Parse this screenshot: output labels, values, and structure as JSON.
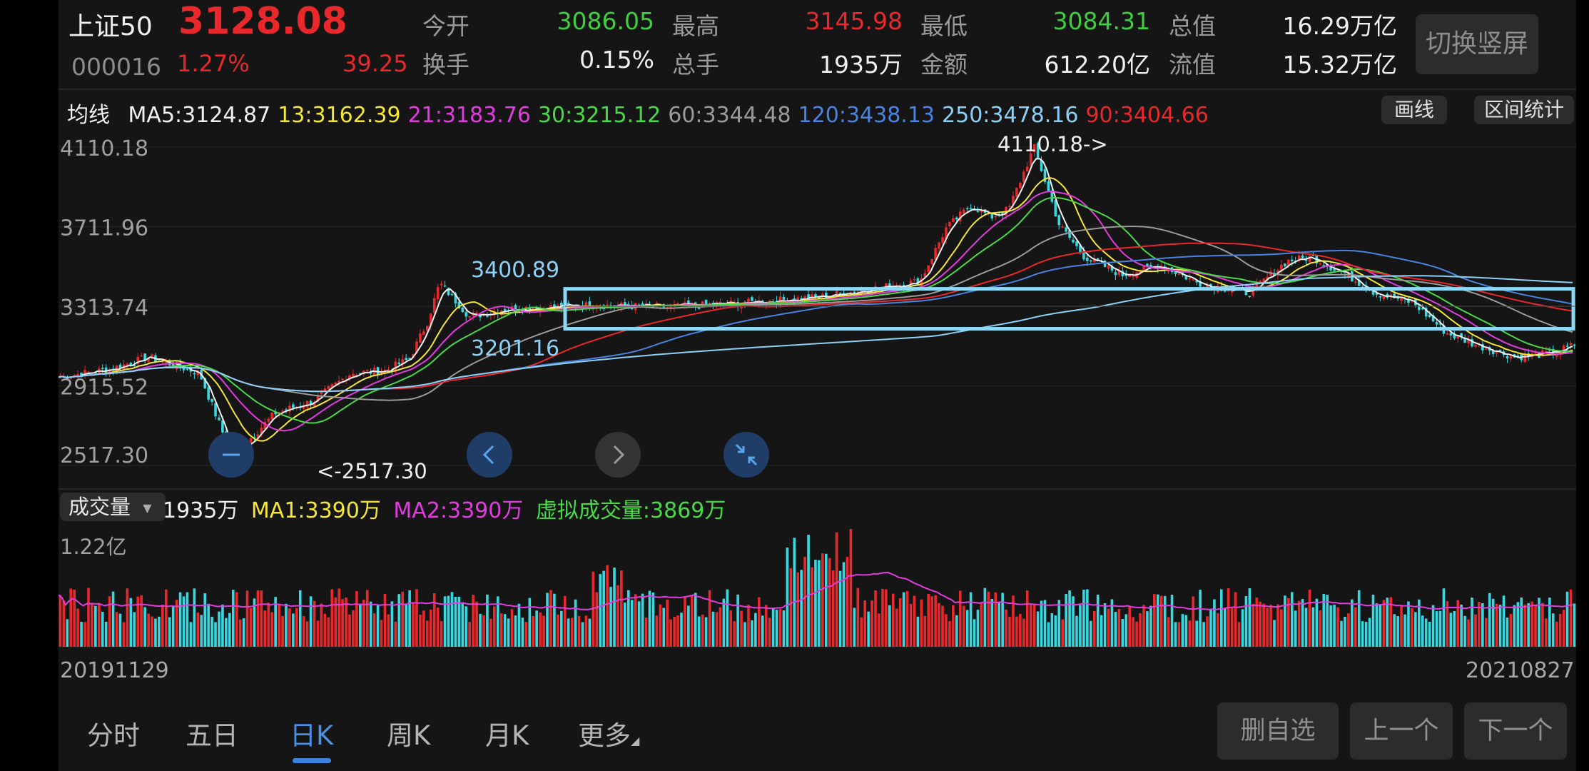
{
  "quote": {
    "name": "上证50",
    "code": "000016",
    "price": "3128.08",
    "change_pct": "1.27%",
    "change": "39.25",
    "stats": [
      {
        "label": "今开",
        "value": "3086.05",
        "color": "#3fce3f"
      },
      {
        "label": "最高",
        "value": "3145.98",
        "color": "#e8282b"
      },
      {
        "label": "最低",
        "value": "3084.31",
        "color": "#3fce3f"
      },
      {
        "label": "总值",
        "value": "16.29万亿",
        "color": "#f0f0f0"
      },
      {
        "label": "换手",
        "value": "0.15%",
        "color": "#f0f0f0"
      },
      {
        "label": "总手",
        "value": "1935万",
        "color": "#f0f0f0"
      },
      {
        "label": "金额",
        "value": "612.20亿",
        "color": "#f0f0f0"
      },
      {
        "label": "流值",
        "value": "15.32万亿",
        "color": "#f0f0f0"
      }
    ],
    "switch_button": "切换竖屏"
  },
  "ma_bar": {
    "title": "均线",
    "items": [
      {
        "text": "MA5:3124.87",
        "color": "#f0f0f0"
      },
      {
        "text": "13:3162.39",
        "color": "#f5e634"
      },
      {
        "text": "21:3183.76",
        "color": "#e23ce0"
      },
      {
        "text": "30:3215.12",
        "color": "#48d848"
      },
      {
        "text": "60:3344.48",
        "color": "#9a9a9a"
      },
      {
        "text": "120:3438.13",
        "color": "#4a82e0"
      },
      {
        "text": "250:3478.16",
        "color": "#8dd0f5"
      },
      {
        "text": "90:3404.66",
        "color": "#e8282b"
      }
    ],
    "draw_button": "画线",
    "range_button": "区间统计"
  },
  "price_axis": {
    "labels": [
      "4110.18",
      "3711.96",
      "3313.74",
      "2915.52",
      "2517.30"
    ]
  },
  "annotations": {
    "high": "4110.18->",
    "low": "<-2517.30",
    "box_top": "3400.89",
    "box_bottom": "3201.16"
  },
  "colors": {
    "up": "#e8282b",
    "down": "#38d8e0",
    "ma5": "#f0f0f0",
    "ma13": "#f5e634",
    "ma21": "#e23ce0",
    "ma30": "#48d848",
    "ma60": "#9a9a9a",
    "ma90": "#e8282b",
    "ma120": "#4a82e0",
    "ma250": "#8dd0f5",
    "box": "#8dd8f5",
    "vol_ma": "#e23ce0"
  },
  "volume": {
    "selector": "成交量",
    "current": "1935万",
    "ma1": "MA1:3390万",
    "ma2": "MA2:3390万",
    "virtual": "虚拟成交量:3869万",
    "axis_top": "1.22亿"
  },
  "dates": {
    "start": "20191129",
    "end": "20210827"
  },
  "tabs": [
    {
      "label": "分时",
      "active": false
    },
    {
      "label": "五日",
      "active": false
    },
    {
      "label": "日K",
      "active": true
    },
    {
      "label": "周K",
      "active": false
    },
    {
      "label": "月K",
      "active": false
    },
    {
      "label": "更多",
      "active": false
    }
  ],
  "bottom_buttons": {
    "remove": "删自选",
    "prev": "上一个",
    "next": "下一个"
  },
  "chart_data": {
    "type": "candlestick",
    "y_range": [
      2517.3,
      4110.18
    ],
    "key_points": [
      {
        "date": "20191129",
        "close": 2960
      },
      {
        "date": "20200120",
        "close": 3060
      },
      {
        "date": "20200323",
        "close": 2517.3
      },
      {
        "date": "20200701",
        "close": 3150
      },
      {
        "date": "20200710",
        "close": 3420
      },
      {
        "date": "20201231",
        "close": 3640
      },
      {
        "date": "20210218",
        "close": 4110.18
      },
      {
        "date": "20210310",
        "close": 3560
      },
      {
        "date": "20210601",
        "close": 3540
      },
      {
        "date": "20210827",
        "close": 3128.08
      }
    ]
  }
}
